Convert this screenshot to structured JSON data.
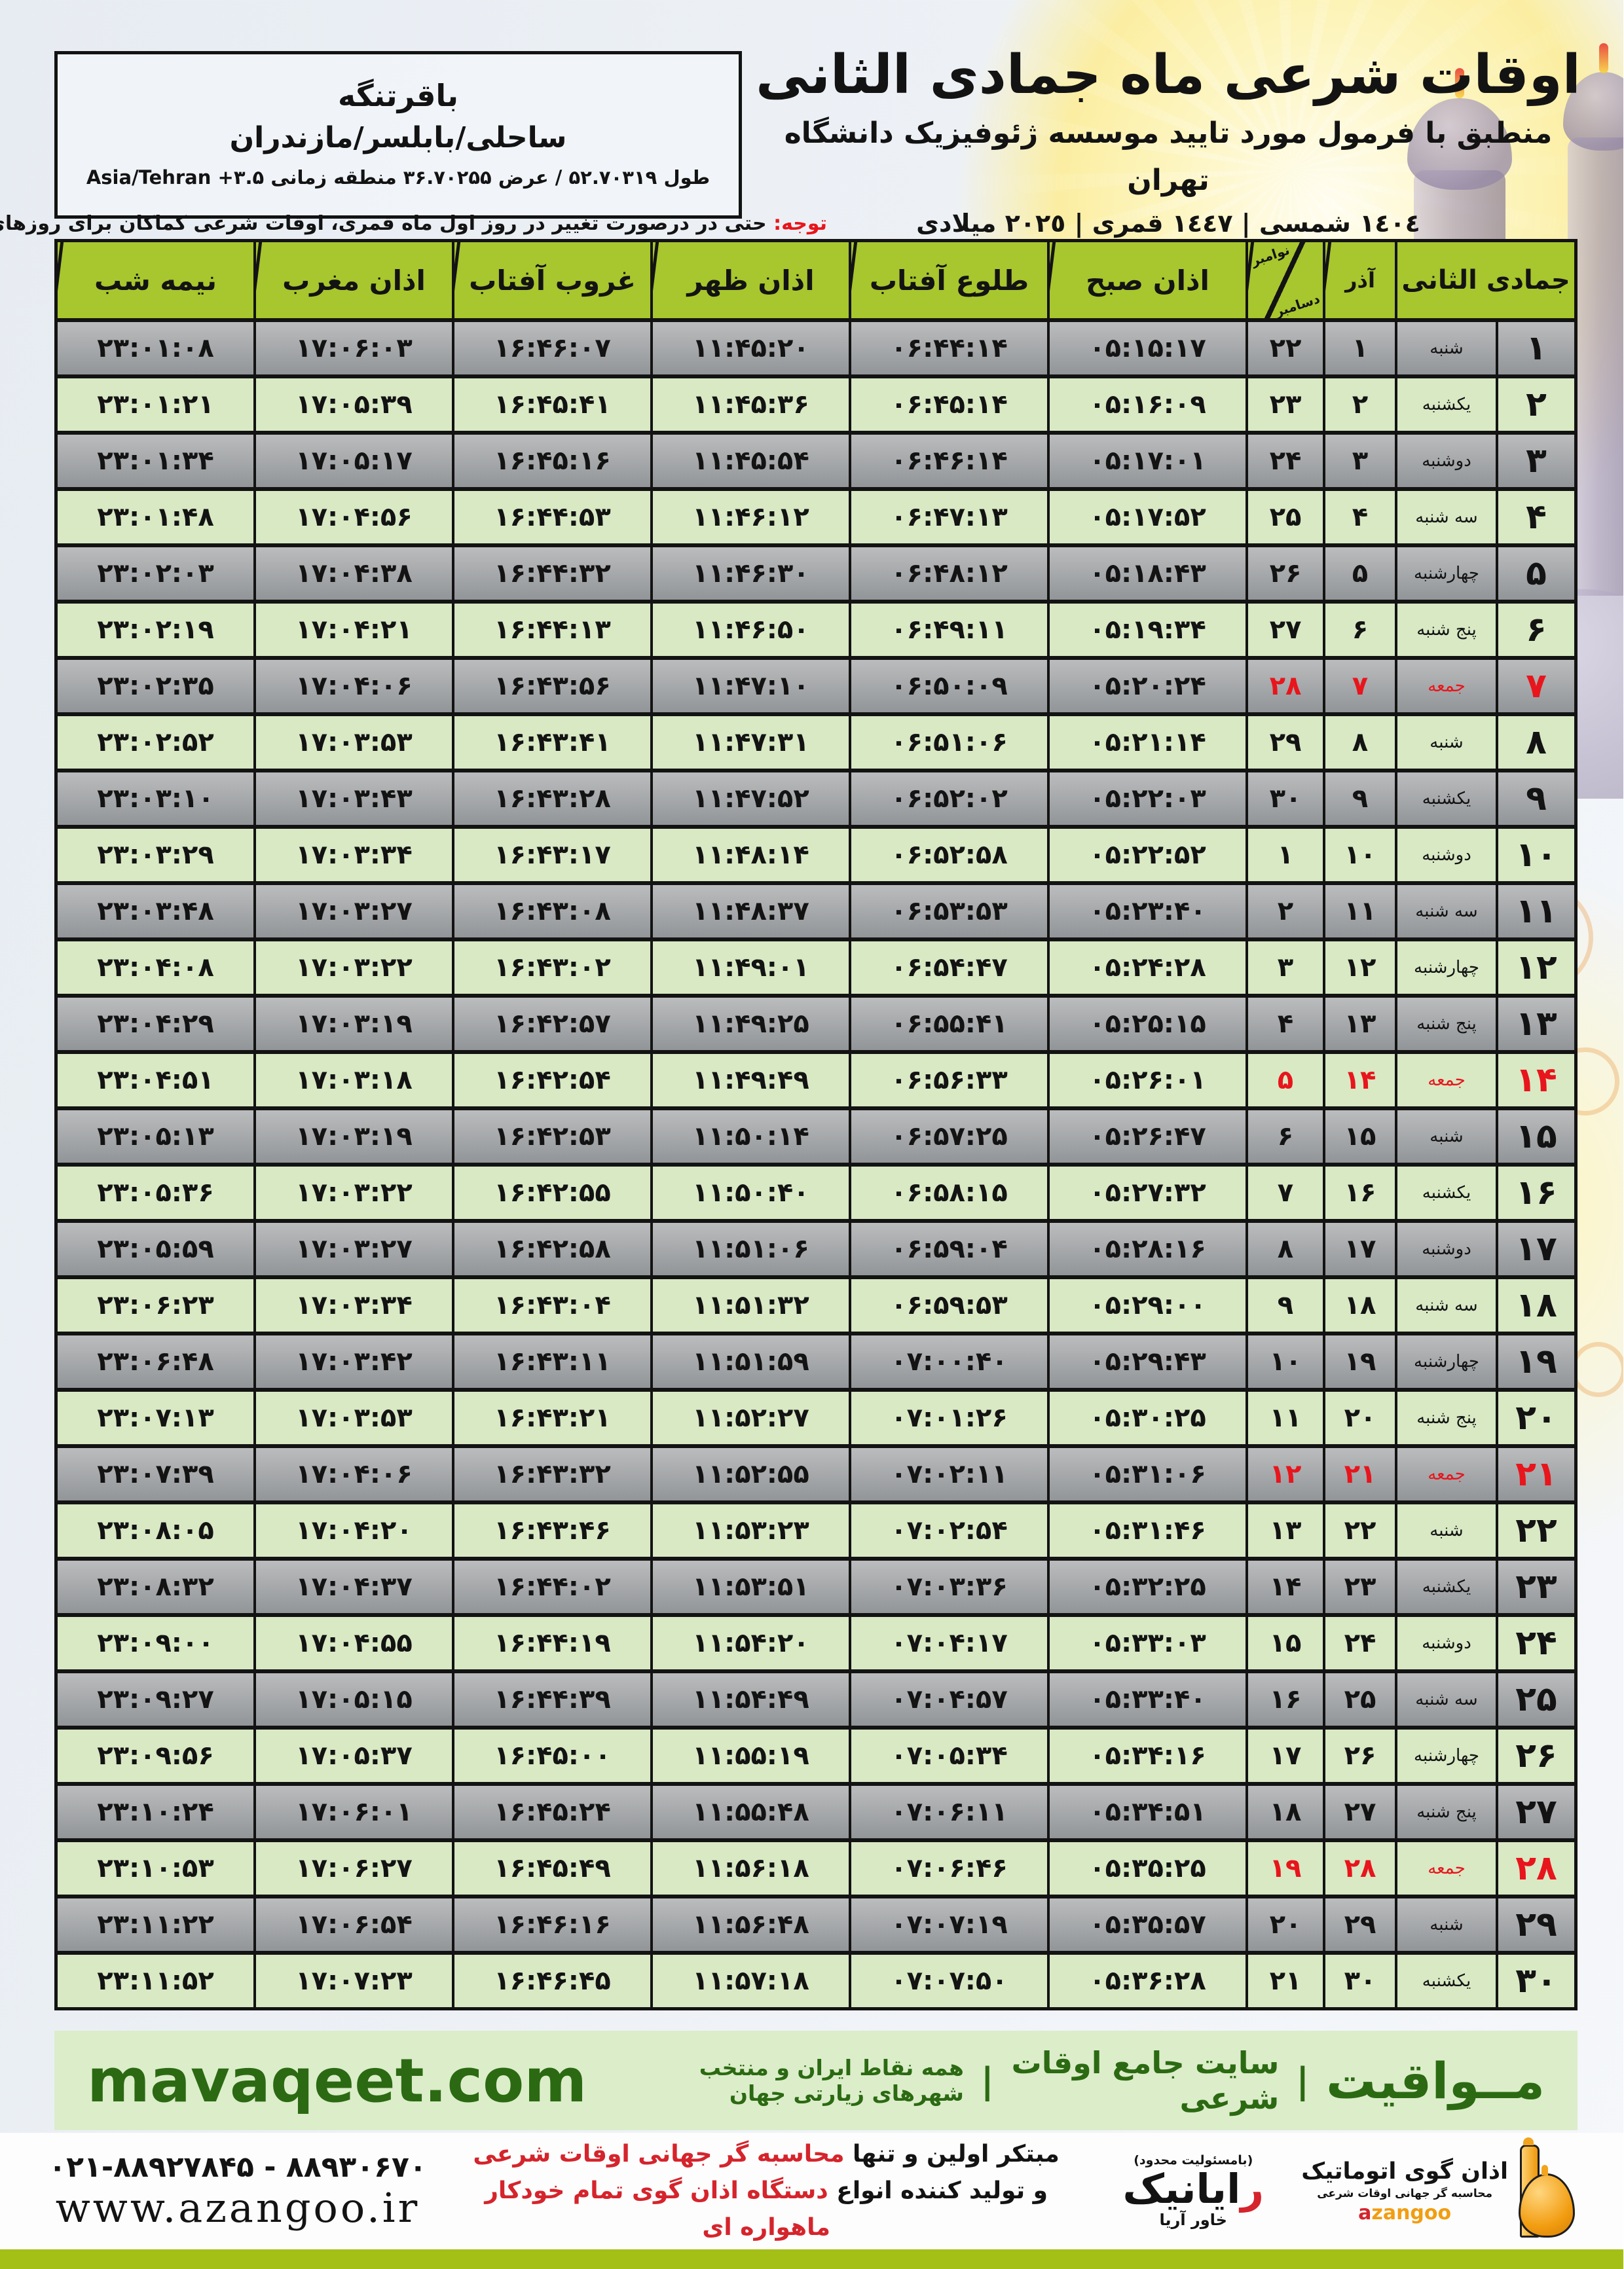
{
  "colors": {
    "header_green": "#a8c62e",
    "row_green": "#d8e9c4",
    "red": "#e8151c",
    "footer_bg": "#dcedca",
    "footer_text": "#2b6a12",
    "strip_green": "#a4bf16",
    "orange": "#f29d11"
  },
  "location_box": {
    "city": "باقرتنگه",
    "region": "ساحلی/بابلسر/مازندران",
    "coords": "طول ۵۲.۷۰۳۱۹ / عرض ۳۶.۷۰۲۵۵ منطقه زمانی ۳.۵+ Asia/Tehran"
  },
  "header": {
    "title": "اوقات شرعی ماه جمادی الثانی",
    "subtitle": "منطبق با فرمول مورد تایید موسسه ژئوفیزیک دانشگاه تهران",
    "years": "١٤٠٤ شمسی | ١٤٤٧ قمری | ٢٠٢٥ میلادی"
  },
  "notice": {
    "label": "توجه:",
    "text": " حتی در درصورت تغییر در روز اول ماه قمری، اوقات شرعی کماکان برای روزهای شمسی و میلادی معتبر است."
  },
  "table": {
    "columns": {
      "jamadi": "جمادی الثانی",
      "azar": "آذر",
      "nov": "نوامبر",
      "dec": "دسامبر",
      "sobh": "اذان صبح",
      "tolu": "طلوع آفتاب",
      "zohr": "اذان ظهر",
      "ghorub": "غروب آفتاب",
      "maghreb": "اذان مغرب",
      "nimeshab": "نیمه شب"
    },
    "rows": [
      {
        "day": "۱",
        "weekday": "شنبه",
        "azar": "۱",
        "nov": "۲۲",
        "sobh": "۰۵:۱۵:۱۷",
        "tolu": "۰۶:۴۴:۱۴",
        "zohr": "۱۱:۴۵:۲۰",
        "ghorub": "۱۶:۴۶:۰۷",
        "maghreb": "۱۷:۰۶:۰۳",
        "nimeshab": "۲۳:۰۱:۰۸",
        "friday": false
      },
      {
        "day": "۲",
        "weekday": "یکشنبه",
        "azar": "۲",
        "nov": "۲۳",
        "sobh": "۰۵:۱۶:۰۹",
        "tolu": "۰۶:۴۵:۱۴",
        "zohr": "۱۱:۴۵:۳۶",
        "ghorub": "۱۶:۴۵:۴۱",
        "maghreb": "۱۷:۰۵:۳۹",
        "nimeshab": "۲۳:۰۱:۲۱",
        "friday": false
      },
      {
        "day": "۳",
        "weekday": "دوشنبه",
        "azar": "۳",
        "nov": "۲۴",
        "sobh": "۰۵:۱۷:۰۱",
        "tolu": "۰۶:۴۶:۱۴",
        "zohr": "۱۱:۴۵:۵۴",
        "ghorub": "۱۶:۴۵:۱۶",
        "maghreb": "۱۷:۰۵:۱۷",
        "nimeshab": "۲۳:۰۱:۳۴",
        "friday": false
      },
      {
        "day": "۴",
        "weekday": "سه شنبه",
        "azar": "۴",
        "nov": "۲۵",
        "sobh": "۰۵:۱۷:۵۲",
        "tolu": "۰۶:۴۷:۱۳",
        "zohr": "۱۱:۴۶:۱۲",
        "ghorub": "۱۶:۴۴:۵۳",
        "maghreb": "۱۷:۰۴:۵۶",
        "nimeshab": "۲۳:۰۱:۴۸",
        "friday": false
      },
      {
        "day": "۵",
        "weekday": "چهارشنبه",
        "azar": "۵",
        "nov": "۲۶",
        "sobh": "۰۵:۱۸:۴۳",
        "tolu": "۰۶:۴۸:۱۲",
        "zohr": "۱۱:۴۶:۳۰",
        "ghorub": "۱۶:۴۴:۳۲",
        "maghreb": "۱۷:۰۴:۳۸",
        "nimeshab": "۲۳:۰۲:۰۳",
        "friday": false
      },
      {
        "day": "۶",
        "weekday": "پنج شنبه",
        "azar": "۶",
        "nov": "۲۷",
        "sobh": "۰۵:۱۹:۳۴",
        "tolu": "۰۶:۴۹:۱۱",
        "zohr": "۱۱:۴۶:۵۰",
        "ghorub": "۱۶:۴۴:۱۳",
        "maghreb": "۱۷:۰۴:۲۱",
        "nimeshab": "۲۳:۰۲:۱۹",
        "friday": false
      },
      {
        "day": "۷",
        "weekday": "جمعه",
        "azar": "۷",
        "nov": "۲۸",
        "sobh": "۰۵:۲۰:۲۴",
        "tolu": "۰۶:۵۰:۰۹",
        "zohr": "۱۱:۴۷:۱۰",
        "ghorub": "۱۶:۴۳:۵۶",
        "maghreb": "۱۷:۰۴:۰۶",
        "nimeshab": "۲۳:۰۲:۳۵",
        "friday": true
      },
      {
        "day": "۸",
        "weekday": "شنبه",
        "azar": "۸",
        "nov": "۲۹",
        "sobh": "۰۵:۲۱:۱۴",
        "tolu": "۰۶:۵۱:۰۶",
        "zohr": "۱۱:۴۷:۳۱",
        "ghorub": "۱۶:۴۳:۴۱",
        "maghreb": "۱۷:۰۳:۵۳",
        "nimeshab": "۲۳:۰۲:۵۲",
        "friday": false
      },
      {
        "day": "۹",
        "weekday": "یکشنبه",
        "azar": "۹",
        "nov": "۳۰",
        "sobh": "۰۵:۲۲:۰۳",
        "tolu": "۰۶:۵۲:۰۲",
        "zohr": "۱۱:۴۷:۵۲",
        "ghorub": "۱۶:۴۳:۲۸",
        "maghreb": "۱۷:۰۳:۴۳",
        "nimeshab": "۲۳:۰۳:۱۰",
        "friday": false
      },
      {
        "day": "۱۰",
        "weekday": "دوشنبه",
        "azar": "۱۰",
        "nov": "۱",
        "sobh": "۰۵:۲۲:۵۲",
        "tolu": "۰۶:۵۲:۵۸",
        "zohr": "۱۱:۴۸:۱۴",
        "ghorub": "۱۶:۴۳:۱۷",
        "maghreb": "۱۷:۰۳:۳۴",
        "nimeshab": "۲۳:۰۳:۲۹",
        "friday": false
      },
      {
        "day": "۱۱",
        "weekday": "سه شنبه",
        "azar": "۱۱",
        "nov": "۲",
        "sobh": "۰۵:۲۳:۴۰",
        "tolu": "۰۶:۵۳:۵۳",
        "zohr": "۱۱:۴۸:۳۷",
        "ghorub": "۱۶:۴۳:۰۸",
        "maghreb": "۱۷:۰۳:۲۷",
        "nimeshab": "۲۳:۰۳:۴۸",
        "friday": false
      },
      {
        "day": "۱۲",
        "weekday": "چهارشنبه",
        "azar": "۱۲",
        "nov": "۳",
        "sobh": "۰۵:۲۴:۲۸",
        "tolu": "۰۶:۵۴:۴۷",
        "zohr": "۱۱:۴۹:۰۱",
        "ghorub": "۱۶:۴۳:۰۲",
        "maghreb": "۱۷:۰۳:۲۲",
        "nimeshab": "۲۳:۰۴:۰۸",
        "friday": false
      },
      {
        "day": "۱۳",
        "weekday": "پنج شنبه",
        "azar": "۱۳",
        "nov": "۴",
        "sobh": "۰۵:۲۵:۱۵",
        "tolu": "۰۶:۵۵:۴۱",
        "zohr": "۱۱:۴۹:۲۵",
        "ghorub": "۱۶:۴۲:۵۷",
        "maghreb": "۱۷:۰۳:۱۹",
        "nimeshab": "۲۳:۰۴:۲۹",
        "friday": false
      },
      {
        "day": "۱۴",
        "weekday": "جمعه",
        "azar": "۱۴",
        "nov": "۵",
        "sobh": "۰۵:۲۶:۰۱",
        "tolu": "۰۶:۵۶:۳۳",
        "zohr": "۱۱:۴۹:۴۹",
        "ghorub": "۱۶:۴۲:۵۴",
        "maghreb": "۱۷:۰۳:۱۸",
        "nimeshab": "۲۳:۰۴:۵۱",
        "friday": true
      },
      {
        "day": "۱۵",
        "weekday": "شنبه",
        "azar": "۱۵",
        "nov": "۶",
        "sobh": "۰۵:۲۶:۴۷",
        "tolu": "۰۶:۵۷:۲۵",
        "zohr": "۱۱:۵۰:۱۴",
        "ghorub": "۱۶:۴۲:۵۳",
        "maghreb": "۱۷:۰۳:۱۹",
        "nimeshab": "۲۳:۰۵:۱۳",
        "friday": false
      },
      {
        "day": "۱۶",
        "weekday": "یکشنبه",
        "azar": "۱۶",
        "nov": "۷",
        "sobh": "۰۵:۲۷:۳۲",
        "tolu": "۰۶:۵۸:۱۵",
        "zohr": "۱۱:۵۰:۴۰",
        "ghorub": "۱۶:۴۲:۵۵",
        "maghreb": "۱۷:۰۳:۲۲",
        "nimeshab": "۲۳:۰۵:۳۶",
        "friday": false
      },
      {
        "day": "۱۷",
        "weekday": "دوشنبه",
        "azar": "۱۷",
        "nov": "۸",
        "sobh": "۰۵:۲۸:۱۶",
        "tolu": "۰۶:۵۹:۰۴",
        "zohr": "۱۱:۵۱:۰۶",
        "ghorub": "۱۶:۴۲:۵۸",
        "maghreb": "۱۷:۰۳:۲۷",
        "nimeshab": "۲۳:۰۵:۵۹",
        "friday": false
      },
      {
        "day": "۱۸",
        "weekday": "سه شنبه",
        "azar": "۱۸",
        "nov": "۹",
        "sobh": "۰۵:۲۹:۰۰",
        "tolu": "۰۶:۵۹:۵۳",
        "zohr": "۱۱:۵۱:۳۲",
        "ghorub": "۱۶:۴۳:۰۴",
        "maghreb": "۱۷:۰۳:۳۴",
        "nimeshab": "۲۳:۰۶:۲۳",
        "friday": false
      },
      {
        "day": "۱۹",
        "weekday": "چهارشنبه",
        "azar": "۱۹",
        "nov": "۱۰",
        "sobh": "۰۵:۲۹:۴۳",
        "tolu": "۰۷:۰۰:۴۰",
        "zohr": "۱۱:۵۱:۵۹",
        "ghorub": "۱۶:۴۳:۱۱",
        "maghreb": "۱۷:۰۳:۴۲",
        "nimeshab": "۲۳:۰۶:۴۸",
        "friday": false
      },
      {
        "day": "۲۰",
        "weekday": "پنج شنبه",
        "azar": "۲۰",
        "nov": "۱۱",
        "sobh": "۰۵:۳۰:۲۵",
        "tolu": "۰۷:۰۱:۲۶",
        "zohr": "۱۱:۵۲:۲۷",
        "ghorub": "۱۶:۴۳:۲۱",
        "maghreb": "۱۷:۰۳:۵۳",
        "nimeshab": "۲۳:۰۷:۱۳",
        "friday": false
      },
      {
        "day": "۲۱",
        "weekday": "جمعه",
        "azar": "۲۱",
        "nov": "۱۲",
        "sobh": "۰۵:۳۱:۰۶",
        "tolu": "۰۷:۰۲:۱۱",
        "zohr": "۱۱:۵۲:۵۵",
        "ghorub": "۱۶:۴۳:۳۲",
        "maghreb": "۱۷:۰۴:۰۶",
        "nimeshab": "۲۳:۰۷:۳۹",
        "friday": true
      },
      {
        "day": "۲۲",
        "weekday": "شنبه",
        "azar": "۲۲",
        "nov": "۱۳",
        "sobh": "۰۵:۳۱:۴۶",
        "tolu": "۰۷:۰۲:۵۴",
        "zohr": "۱۱:۵۳:۲۳",
        "ghorub": "۱۶:۴۳:۴۶",
        "maghreb": "۱۷:۰۴:۲۰",
        "nimeshab": "۲۳:۰۸:۰۵",
        "friday": false
      },
      {
        "day": "۲۳",
        "weekday": "یکشنبه",
        "azar": "۲۳",
        "nov": "۱۴",
        "sobh": "۰۵:۳۲:۲۵",
        "tolu": "۰۷:۰۳:۳۶",
        "zohr": "۱۱:۵۳:۵۱",
        "ghorub": "۱۶:۴۴:۰۲",
        "maghreb": "۱۷:۰۴:۳۷",
        "nimeshab": "۲۳:۰۸:۳۲",
        "friday": false
      },
      {
        "day": "۲۴",
        "weekday": "دوشنبه",
        "azar": "۲۴",
        "nov": "۱۵",
        "sobh": "۰۵:۳۳:۰۳",
        "tolu": "۰۷:۰۴:۱۷",
        "zohr": "۱۱:۵۴:۲۰",
        "ghorub": "۱۶:۴۴:۱۹",
        "maghreb": "۱۷:۰۴:۵۵",
        "nimeshab": "۲۳:۰۹:۰۰",
        "friday": false
      },
      {
        "day": "۲۵",
        "weekday": "سه شنبه",
        "azar": "۲۵",
        "nov": "۱۶",
        "sobh": "۰۵:۳۳:۴۰",
        "tolu": "۰۷:۰۴:۵۷",
        "zohr": "۱۱:۵۴:۴۹",
        "ghorub": "۱۶:۴۴:۳۹",
        "maghreb": "۱۷:۰۵:۱۵",
        "nimeshab": "۲۳:۰۹:۲۷",
        "friday": false
      },
      {
        "day": "۲۶",
        "weekday": "چهارشنبه",
        "azar": "۲۶",
        "nov": "۱۷",
        "sobh": "۰۵:۳۴:۱۶",
        "tolu": "۰۷:۰۵:۳۴",
        "zohr": "۱۱:۵۵:۱۹",
        "ghorub": "۱۶:۴۵:۰۰",
        "maghreb": "۱۷:۰۵:۳۷",
        "nimeshab": "۲۳:۰۹:۵۶",
        "friday": false
      },
      {
        "day": "۲۷",
        "weekday": "پنج شنبه",
        "azar": "۲۷",
        "nov": "۱۸",
        "sobh": "۰۵:۳۴:۵۱",
        "tolu": "۰۷:۰۶:۱۱",
        "zohr": "۱۱:۵۵:۴۸",
        "ghorub": "۱۶:۴۵:۲۴",
        "maghreb": "۱۷:۰۶:۰۱",
        "nimeshab": "۲۳:۱۰:۲۴",
        "friday": false
      },
      {
        "day": "۲۸",
        "weekday": "جمعه",
        "azar": "۲۸",
        "nov": "۱۹",
        "sobh": "۰۵:۳۵:۲۵",
        "tolu": "۰۷:۰۶:۴۶",
        "zohr": "۱۱:۵۶:۱۸",
        "ghorub": "۱۶:۴۵:۴۹",
        "maghreb": "۱۷:۰۶:۲۷",
        "nimeshab": "۲۳:۱۰:۵۳",
        "friday": true
      },
      {
        "day": "۲۹",
        "weekday": "شنبه",
        "azar": "۲۹",
        "nov": "۲۰",
        "sobh": "۰۵:۳۵:۵۷",
        "tolu": "۰۷:۰۷:۱۹",
        "zohr": "۱۱:۵۶:۴۸",
        "ghorub": "۱۶:۴۶:۱۶",
        "maghreb": "۱۷:۰۶:۵۴",
        "nimeshab": "۲۳:۱۱:۲۲",
        "friday": false
      },
      {
        "day": "۳۰",
        "weekday": "یکشنبه",
        "azar": "۳۰",
        "nov": "۲۱",
        "sobh": "۰۵:۳۶:۲۸",
        "tolu": "۰۷:۰۷:۵۰",
        "zohr": "۱۱:۵۷:۱۸",
        "ghorub": "۱۶:۴۶:۴۵",
        "maghreb": "۱۷:۰۷:۲۳",
        "nimeshab": "۲۳:۱۱:۵۲",
        "friday": false
      }
    ]
  },
  "footer_bar": {
    "brand": "مــواقیت",
    "sep": "|",
    "tagline1": "سایت جامع اوقات شرعی",
    "tagline2": "همه نقاط ایران و منتخب شهرهای زیارتی جهان",
    "site_en": "mavaqeet.com"
  },
  "bottom": {
    "phones": "۰۲۱-۸۸۹۲۷۸۴۵ - ۸۸۹۳۰۶۷۰",
    "site": "www.azangoo.ir",
    "line1_black": "مبتکر اولین و تنها ",
    "line1_red": "محاسبه گر جهانی اوقات شرعی",
    "line2_black": "و تولید کننده انواع ",
    "line2_red": "دستگاه اذان گوی تمام خودکار ماهواره ای",
    "rayanik_note": "(بامسئولیت محدود)",
    "rayanik_r": "ر",
    "rayanik_rest": "ایانیک",
    "rayanik_sub": "خاور آریا",
    "azangoo_title": "اذان گوی اتوماتیک",
    "azangoo_sub": "محاسبه گر جهانی اوقات شرعی",
    "azangoo_en_a": "a",
    "azangoo_en_rest": "zangoo"
  }
}
